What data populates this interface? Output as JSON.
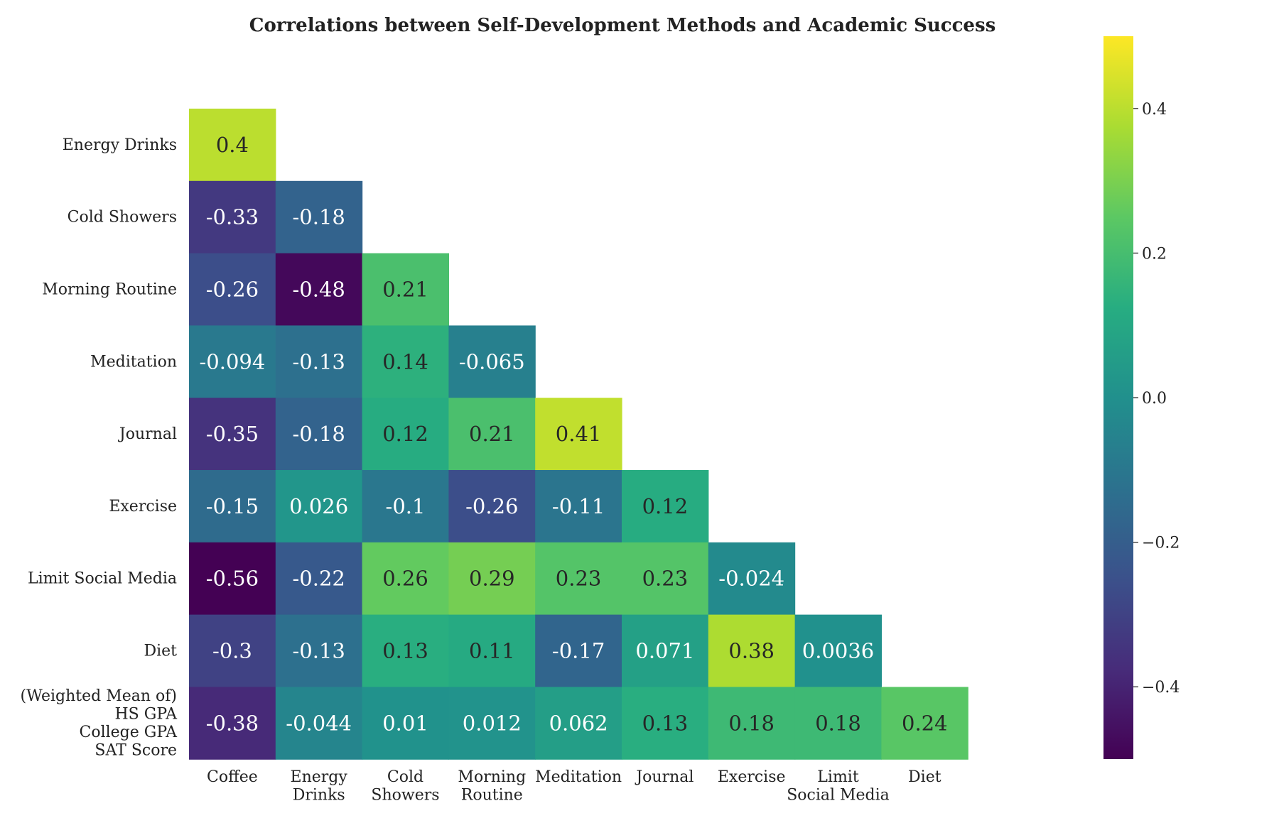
{
  "chart_data": {
    "type": "heatmap",
    "title": "Correlations between Self-Development Methods and Academic Success",
    "colormap": "viridis",
    "mask": "upper-triangle",
    "row_labels": [
      [
        "Energy Drinks"
      ],
      [
        "Cold Showers"
      ],
      [
        "Morning Routine"
      ],
      [
        "Meditation"
      ],
      [
        "Journal"
      ],
      [
        "Exercise"
      ],
      [
        "Limit Social Media"
      ],
      [
        "Diet"
      ],
      [
        "(Weighted Mean of)",
        "HS GPA",
        "College GPA",
        "SAT Score"
      ]
    ],
    "col_labels": [
      [
        "Coffee"
      ],
      [
        "Energy",
        "Drinks"
      ],
      [
        "Cold",
        "Showers"
      ],
      [
        "Morning",
        "Routine"
      ],
      [
        "Meditation"
      ],
      [
        "Journal"
      ],
      [
        "Exercise"
      ],
      [
        "Limit",
        "Social Media"
      ],
      [
        "Diet"
      ]
    ],
    "values": [
      [
        0.4
      ],
      [
        -0.33,
        -0.18
      ],
      [
        -0.26,
        -0.48,
        0.21
      ],
      [
        -0.094,
        -0.13,
        0.14,
        -0.065
      ],
      [
        -0.35,
        -0.18,
        0.12,
        0.21,
        0.41
      ],
      [
        -0.15,
        0.026,
        -0.1,
        -0.26,
        -0.11,
        0.12
      ],
      [
        -0.56,
        -0.22,
        0.26,
        0.29,
        0.23,
        0.23,
        -0.024
      ],
      [
        -0.3,
        -0.13,
        0.13,
        0.11,
        -0.17,
        0.071,
        0.38,
        0.0036
      ],
      [
        -0.38,
        -0.044,
        0.01,
        0.012,
        0.062,
        0.13,
        0.18,
        0.18,
        0.24
      ]
    ],
    "value_labels": [
      [
        "0.4"
      ],
      [
        "-0.33",
        "-0.18"
      ],
      [
        "-0.26",
        "-0.48",
        "0.21"
      ],
      [
        "-0.094",
        "-0.13",
        "0.14",
        "-0.065"
      ],
      [
        "-0.35",
        "-0.18",
        "0.12",
        "0.21",
        "0.41"
      ],
      [
        "-0.15",
        "0.026",
        "-0.1",
        "-0.26",
        "-0.11",
        "0.12"
      ],
      [
        "-0.56",
        "-0.22",
        "0.26",
        "0.29",
        "0.23",
        "0.23",
        "-0.024"
      ],
      [
        "-0.3",
        "-0.13",
        "0.13",
        "0.11",
        "-0.17",
        "0.071",
        "0.38",
        "0.0036"
      ],
      [
        "-0.38",
        "-0.044",
        "0.01",
        "0.012",
        "0.062",
        "0.13",
        "0.18",
        "0.18",
        "0.24"
      ]
    ],
    "color_range": [
      -0.5,
      0.5
    ],
    "colorbar": {
      "ticks": [
        0.4,
        0.2,
        0.0,
        -0.2,
        -0.4
      ],
      "tick_labels": [
        "0.4",
        "0.2",
        "0.0",
        "−0.2",
        "−0.4"
      ]
    },
    "grid": false
  }
}
